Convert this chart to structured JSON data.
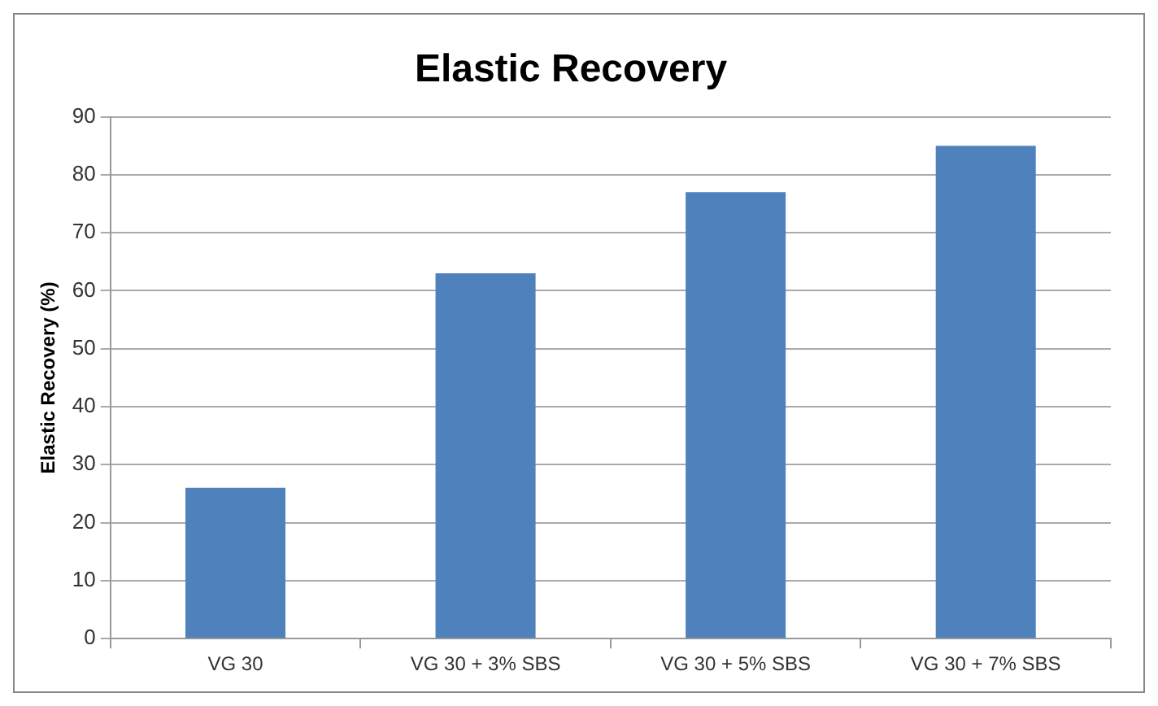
{
  "chart_data": {
    "type": "bar",
    "title": "Elastic Recovery",
    "ylabel": "Elastic Recovery (%)",
    "categories": [
      "VG 30",
      "VG 30 + 3% SBS",
      "VG 30 + 5% SBS",
      "VG 30 + 7% SBS"
    ],
    "values": [
      26,
      63,
      77,
      85
    ],
    "color": "#4f81bd",
    "ylim": [
      0,
      90
    ],
    "yticks": [
      0,
      10,
      20,
      30,
      40,
      50,
      60,
      70,
      80,
      90
    ],
    "grid": "y",
    "legend": false
  }
}
